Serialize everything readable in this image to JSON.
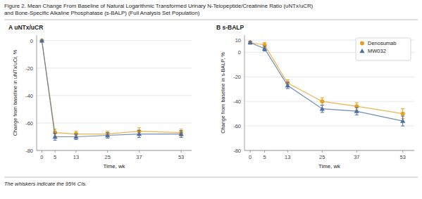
{
  "chart_data": [
    {
      "type": "line",
      "title": "A  uNTx/uCR",
      "annotations": [
        "Figure 2. Mean Change From Baseline of Natural Logarithmic Transformed Urinary N-Telopeptide/Creatinine Ratio (uNTx/uCR)",
        "and Bone-Specific Alkaline Phosphatase (s-BALP) (Full Analysis Set Population)",
        "The whiskers indicate the 95% CIs."
      ],
      "x_label": "Time, wk",
      "y_label": "Change from baseline in uNTx/uCr, %",
      "x": [
        0,
        5,
        13,
        25,
        37,
        53
      ],
      "xlim": [
        -2,
        57
      ],
      "xticks": [
        0,
        5,
        13,
        25,
        37,
        53
      ],
      "ylim": [
        -80,
        4
      ],
      "yticks": [
        0,
        -20,
        -40,
        -60,
        -80
      ],
      "grid": true,
      "series": [
        {
          "name": "Denosumab",
          "color": "#E8A020",
          "marker": "circle",
          "values": [
            0,
            -67,
            -68,
            -68,
            -66,
            -67
          ],
          "error_minus": [
            0,
            2.5,
            2,
            2,
            2.5,
            2.5
          ],
          "error_plus": [
            0,
            2.5,
            2,
            2,
            2.5,
            2.5
          ]
        },
        {
          "name": "MW032",
          "color": "#4A6FA5",
          "marker": "triangle",
          "values": [
            0,
            -70,
            -70,
            -69,
            -68,
            -68
          ],
          "error_minus": [
            0,
            2.5,
            2,
            2,
            2.5,
            2.5
          ],
          "error_plus": [
            0,
            2.5,
            2,
            2,
            2.5,
            2.5
          ]
        }
      ]
    },
    {
      "type": "line",
      "title": "B  s-BALP",
      "x_label": "Time, wk",
      "y_label": "Change from baseline in s-BALP, %",
      "x": [
        0,
        5,
        13,
        25,
        37,
        53
      ],
      "xlim": [
        -2,
        57
      ],
      "xticks": [
        0,
        5,
        13,
        25,
        37,
        53
      ],
      "ylim": [
        -80,
        14
      ],
      "yticks": [
        10,
        0,
        -20,
        -40,
        -60,
        -80
      ],
      "grid": true,
      "legend": "upper right",
      "series": [
        {
          "name": "Denosumab",
          "color": "#E8A020",
          "marker": "circle",
          "values": [
            8,
            6,
            -25,
            -40,
            -44,
            -50
          ],
          "error_minus": [
            1,
            2,
            2.5,
            3,
            3,
            4
          ],
          "error_plus": [
            1,
            2,
            2.5,
            3,
            3,
            4
          ]
        },
        {
          "name": "MW032",
          "color": "#4A6FA5",
          "marker": "triangle",
          "values": [
            8,
            3,
            -27,
            -46,
            -48,
            -56
          ],
          "error_minus": [
            1,
            2,
            2.5,
            3,
            3,
            4
          ],
          "error_plus": [
            1,
            2,
            2.5,
            3,
            3,
            4
          ]
        }
      ]
    }
  ]
}
